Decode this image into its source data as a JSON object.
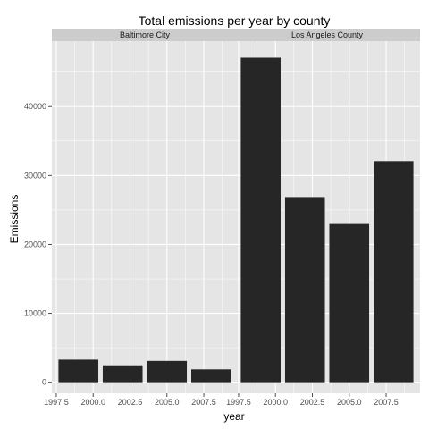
{
  "chart_data": {
    "type": "bar",
    "title": "Total emissions per year by county",
    "xlabel": "year",
    "ylabel": "Emissions",
    "xlim": [
      1997.2,
      2009.8
    ],
    "ylim": [
      -1600,
      49500
    ],
    "x_ticks": [
      "1997.5",
      "2000.0",
      "2002.5",
      "2005.0",
      "2007.5"
    ],
    "x_tick_values": [
      1997.5,
      2000.0,
      2002.5,
      2005.0,
      2007.5
    ],
    "y_ticks": [
      "0",
      "10000",
      "20000",
      "30000",
      "40000"
    ],
    "y_tick_values": [
      0,
      10000,
      20000,
      30000,
      40000
    ],
    "bar_width_years": 2.7,
    "grid": true,
    "colors": {
      "bar": "#262626",
      "panel": "#e5e5e5",
      "grid": "#ffffff",
      "strip": "#cccccc"
    },
    "panels": [
      {
        "name": "Baltimore City",
        "x": [
          1999,
          2002,
          2005,
          2008
        ],
        "values": [
          3275,
          2454,
          3091,
          1862
        ]
      },
      {
        "name": "Los Angeles County",
        "x": [
          1999,
          2002,
          2005,
          2008
        ],
        "values": [
          47103,
          26881,
          22962,
          32079
        ]
      }
    ]
  }
}
